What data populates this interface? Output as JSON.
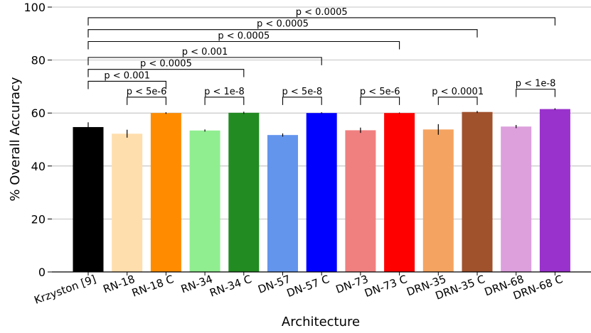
{
  "chart_data": {
    "type": "bar",
    "xlabel": "Architecture",
    "ylabel": "% Overall Accuracy",
    "ylim": [
      0,
      100
    ],
    "yticks": [
      0,
      20,
      40,
      60,
      80,
      100
    ],
    "grid": "horizontal",
    "categories": [
      "Krzyston [9]",
      "RN-18",
      "RN-18 C",
      "RN-34",
      "RN-34 C",
      "DN-57",
      "DN-57 C",
      "DN-73",
      "DN-73 C",
      "DRN-35",
      "DRN-35 C",
      "DRN-68",
      "DRN-68 C"
    ],
    "values": [
      54.7,
      52.2,
      60.0,
      53.4,
      60.1,
      51.7,
      60.0,
      53.5,
      60.0,
      53.8,
      60.4,
      54.9,
      61.5
    ],
    "errors": [
      1.8,
      1.5,
      0.3,
      0.4,
      0.4,
      0.6,
      0.3,
      1.0,
      0.2,
      2.0,
      0.4,
      0.6,
      0.3
    ],
    "colors": [
      "#000000",
      "#ffdead",
      "#ff8c00",
      "#90ee90",
      "#228b22",
      "#6495ed",
      "#0000ff",
      "#f08080",
      "#ff0000",
      "#f4a460",
      "#a0522d",
      "#dda0dd",
      "#9932cc"
    ],
    "significance": [
      {
        "from": 1,
        "to": 2,
        "label": "p < 5e-6",
        "level": 66
      },
      {
        "from": 3,
        "to": 4,
        "label": "p < 1e-8",
        "level": 66
      },
      {
        "from": 5,
        "to": 6,
        "label": "p < 5e-8",
        "level": 66
      },
      {
        "from": 7,
        "to": 8,
        "label": "p < 5e-6",
        "level": 66
      },
      {
        "from": 9,
        "to": 10,
        "label": "p < 0.0001",
        "level": 66
      },
      {
        "from": 11,
        "to": 12,
        "label": "p < 1e-8",
        "level": 69
      },
      {
        "from": 0,
        "to": 2,
        "label": "p < 0.001",
        "level": 72
      },
      {
        "from": 0,
        "to": 4,
        "label": "p < 0.0005",
        "level": 76.5
      },
      {
        "from": 0,
        "to": 6,
        "label": "p < 0.001",
        "level": 81
      },
      {
        "from": 0,
        "to": 8,
        "label": "p < 0.0005",
        "level": 87
      },
      {
        "from": 0,
        "to": 10,
        "label": "p < 0.0005",
        "level": 91.5
      },
      {
        "from": 0,
        "to": 12,
        "label": "p < 0.0005",
        "level": 96
      }
    ]
  }
}
